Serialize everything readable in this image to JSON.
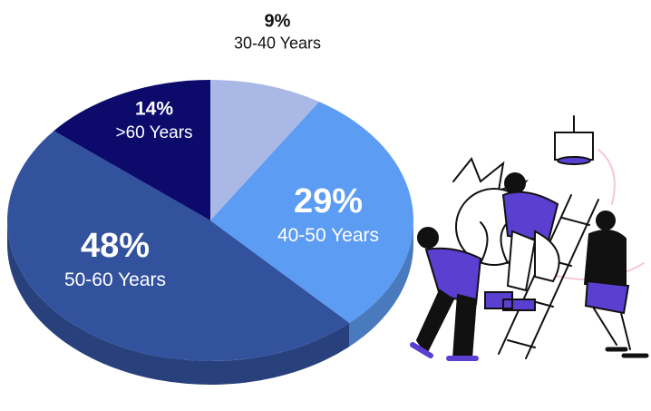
{
  "chart_data": {
    "type": "pie",
    "categories": [
      "30-40 Years",
      "40-50 Years",
      "50-60 Years",
      ">60 Years"
    ],
    "values": [
      9,
      29,
      48,
      14
    ],
    "value_labels": [
      "9%",
      "29%",
      "48%",
      "14%"
    ],
    "colors": [
      "#a9b8e4",
      "#5c9cf2",
      "#33529e",
      "#0c0b6c"
    ]
  }
}
